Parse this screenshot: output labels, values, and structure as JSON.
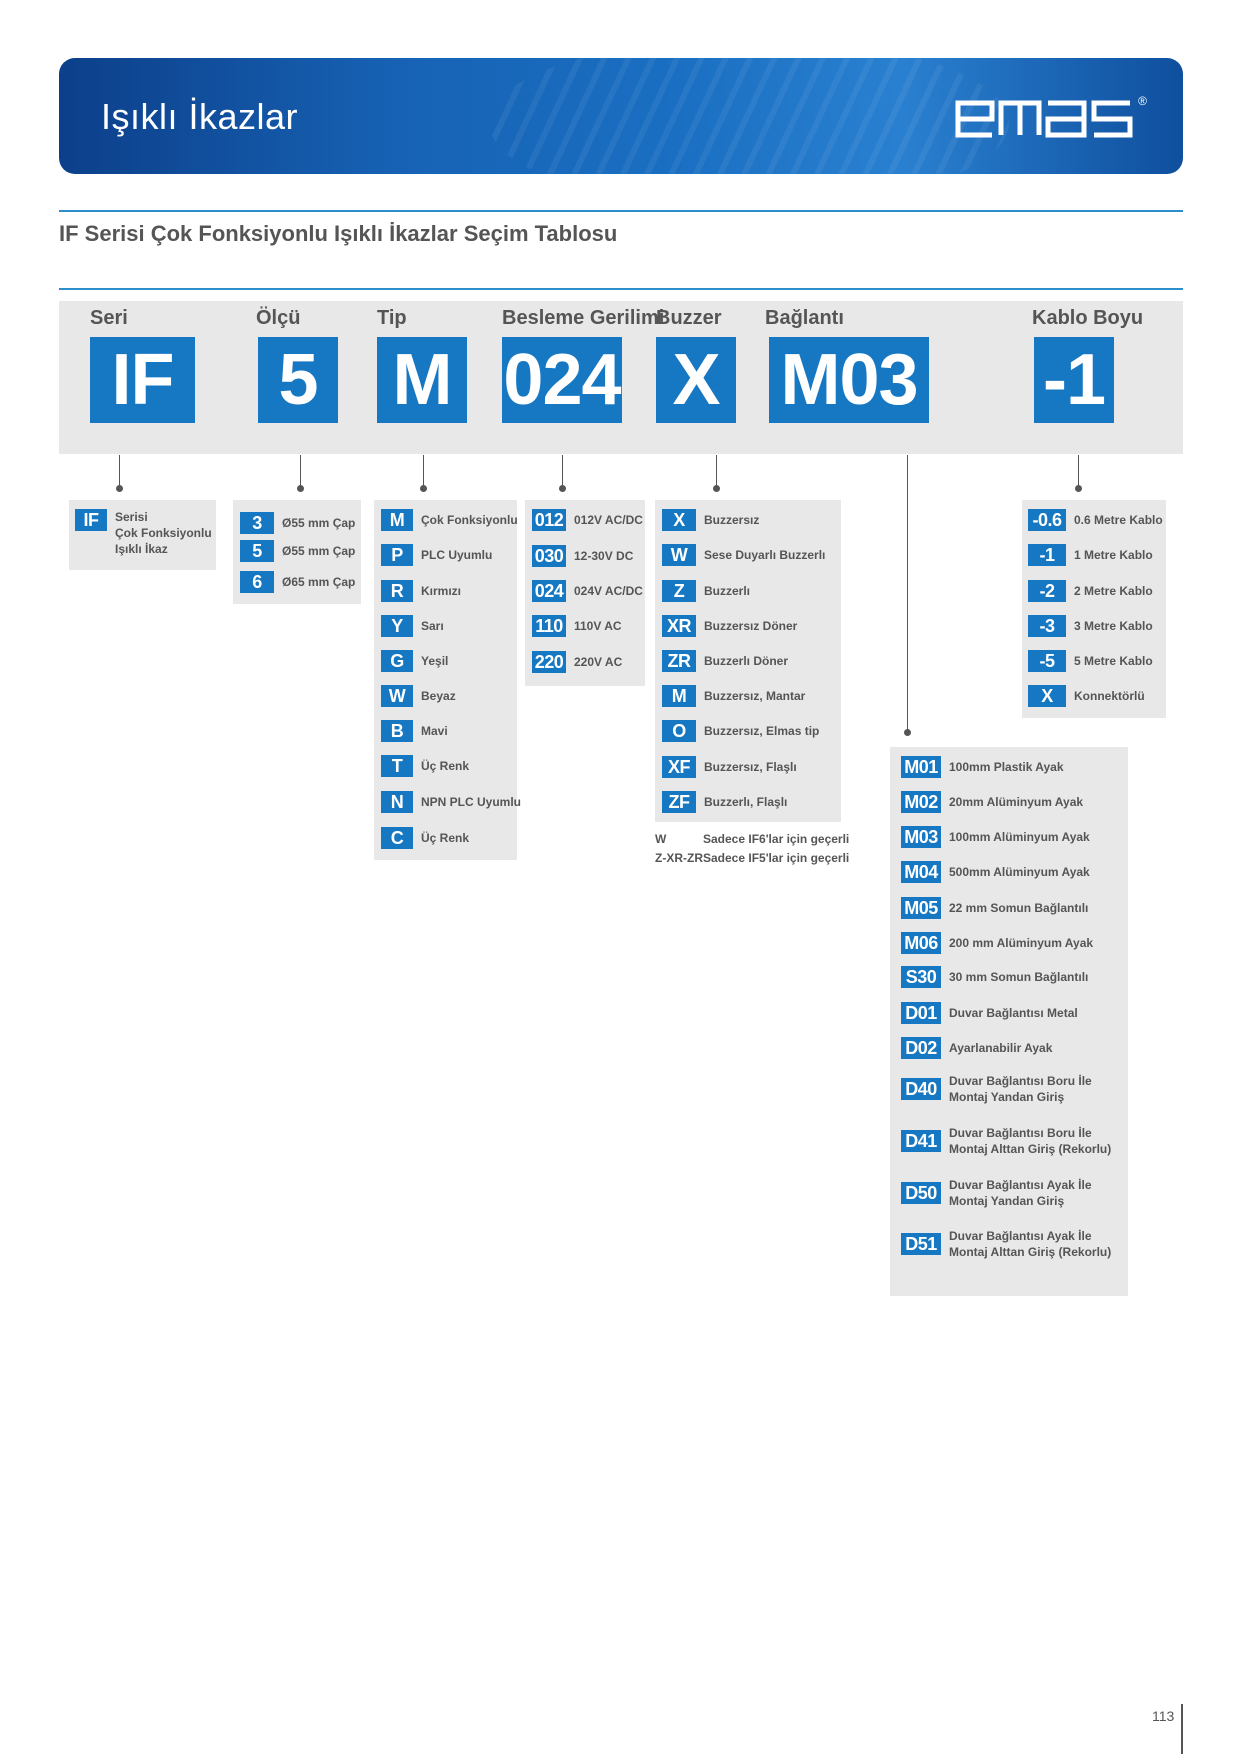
{
  "header": {
    "title": "Işıklı İkazlar",
    "brand": "emas",
    "registered": "®"
  },
  "subtitle": "IF Serisi Çok Fonksiyonlu Işıklı İkazlar Seçim Tablosu",
  "code_headers": [
    "Seri",
    "Ölçü",
    "Tip",
    "Besleme Gerilimi",
    "Buzzer",
    "Bağlantı",
    "Kablo Boyu"
  ],
  "code_values": [
    "IF",
    "5",
    "M",
    "024",
    "X",
    "M03",
    "-1"
  ],
  "seri": [
    {
      "code": "IF",
      "label": "Serisi\nÇok Fonksiyonlu\nIşıklı İkaz"
    }
  ],
  "olcu": [
    {
      "code": "3",
      "label": "Ø55 mm Çap"
    },
    {
      "code": "5",
      "label": "Ø55 mm Çap"
    },
    {
      "code": "6",
      "label": "Ø65 mm Çap"
    }
  ],
  "tip": [
    {
      "code": "M",
      "label": "Çok Fonksiyonlu"
    },
    {
      "code": "P",
      "label": "PLC Uyumlu"
    },
    {
      "code": "R",
      "label": "Kırmızı"
    },
    {
      "code": "Y",
      "label": "Sarı"
    },
    {
      "code": "G",
      "label": "Yeşil"
    },
    {
      "code": "W",
      "label": "Beyaz"
    },
    {
      "code": "B",
      "label": "Mavi"
    },
    {
      "code": "T",
      "label": "Üç Renk"
    },
    {
      "code": "N",
      "label": "NPN PLC Uyumlu"
    },
    {
      "code": "C",
      "label": "Üç Renk"
    }
  ],
  "besleme": [
    {
      "code": "012",
      "label": "012V AC/DC"
    },
    {
      "code": "030",
      "label": "12-30V DC"
    },
    {
      "code": "024",
      "label": "024V AC/DC"
    },
    {
      "code": "110",
      "label": "110V AC"
    },
    {
      "code": "220",
      "label": "220V AC"
    }
  ],
  "buzzer": [
    {
      "code": "X",
      "label": "Buzzersız"
    },
    {
      "code": "W",
      "label": "Sese Duyarlı Buzzerlı"
    },
    {
      "code": "Z",
      "label": "Buzzerlı"
    },
    {
      "code": "XR",
      "label": "Buzzersız Döner"
    },
    {
      "code": "ZR",
      "label": "Buzzerlı Döner"
    },
    {
      "code": "M",
      "label": "Buzzersız, Mantar"
    },
    {
      "code": "O",
      "label": "Buzzersız, Elmas tip"
    },
    {
      "code": "XF",
      "label": "Buzzersız, Flaşlı"
    },
    {
      "code": "ZF",
      "label": "Buzzerlı, Flaşlı"
    }
  ],
  "buzzer_notes": [
    {
      "key": "W",
      "text": "Sadece IF6'lar için geçerli"
    },
    {
      "key": "Z-XR-ZR",
      "text": "Sadece IF5'lar için geçerli"
    }
  ],
  "baglanti": [
    {
      "code": "M01",
      "label": "100mm Plastik Ayak"
    },
    {
      "code": "M02",
      "label": "20mm Alüminyum Ayak"
    },
    {
      "code": "M03",
      "label": "100mm Alüminyum Ayak"
    },
    {
      "code": "M04",
      "label": "500mm Alüminyum Ayak"
    },
    {
      "code": "M05",
      "label": "22 mm Somun Bağlantılı"
    },
    {
      "code": "M06",
      "label": "200 mm Alüminyum Ayak"
    },
    {
      "code": "S30",
      "label": "30 mm Somun Bağlantılı"
    },
    {
      "code": "D01",
      "label": "Duvar Bağlantısı Metal"
    },
    {
      "code": "D02",
      "label": "Ayarlanabilir Ayak"
    },
    {
      "code": "D40",
      "label": "Duvar Bağlantısı Boru İle\nMontaj Yandan Giriş"
    },
    {
      "code": "D41",
      "label": "Duvar Bağlantısı Boru İle\nMontaj Alttan Giriş (Rekorlu)"
    },
    {
      "code": "D50",
      "label": "Duvar Bağlantısı Ayak İle\nMontaj Yandan Giriş"
    },
    {
      "code": "D51",
      "label": "Duvar Bağlantısı Ayak İle\nMontaj Alttan Giriş (Rekorlu)"
    }
  ],
  "kablo": [
    {
      "code": "-0.6",
      "label": "0.6 Metre Kablo"
    },
    {
      "code": "-1",
      "label": "1 Metre Kablo"
    },
    {
      "code": "-2",
      "label": "2 Metre Kablo"
    },
    {
      "code": "-3",
      "label": "3 Metre Kablo"
    },
    {
      "code": "-5",
      "label": "5 Metre Kablo"
    },
    {
      "code": "X",
      "label": "Konnektörlü"
    }
  ],
  "page_number": "113"
}
